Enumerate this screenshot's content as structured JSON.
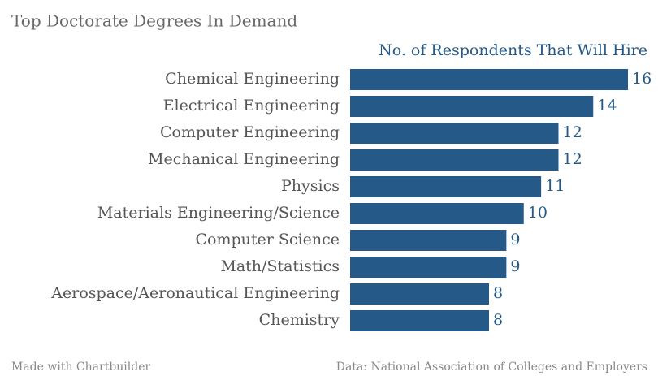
{
  "chart_data": {
    "type": "bar",
    "orientation": "horizontal",
    "title": "Top Doctorate Degrees In Demand",
    "subtitle": "No. of Respondents That Will Hire",
    "categories": [
      "Chemical Engineering",
      "Electrical Engineering",
      "Computer Engineering",
      "Mechanical Engineering",
      "Physics",
      "Materials Engineering/Science",
      "Computer Science",
      "Math/Statistics",
      "Aerospace/Aeronautical Engineering",
      "Chemistry"
    ],
    "values": [
      16,
      14,
      12,
      12,
      11,
      10,
      9,
      9,
      8,
      8
    ],
    "color": "#255a88",
    "credit": "Made with Chartbuilder",
    "source": "Data: National Association of Colleges and Employers"
  }
}
